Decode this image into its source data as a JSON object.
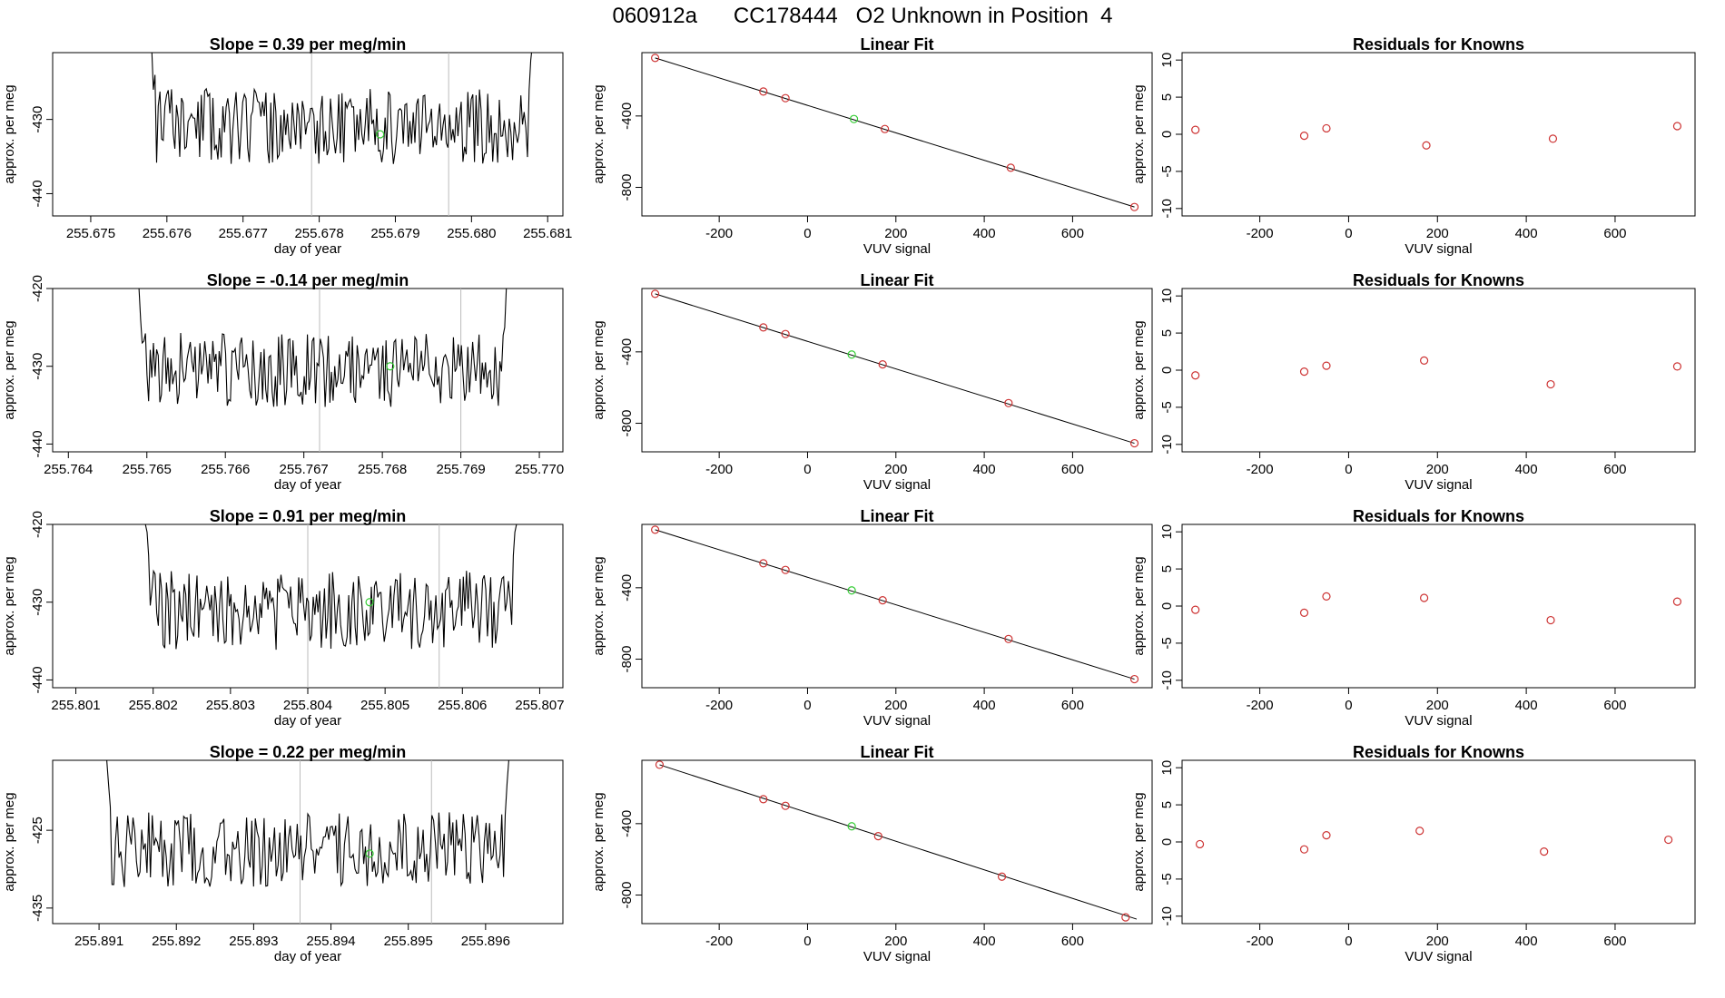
{
  "header": {
    "title": "060912a      CC178444   O2 Unknown in Position  4"
  },
  "chart_data": [
    {
      "type": "line",
      "panel": "time-series",
      "row": 1,
      "title": "Slope =  0.39  per meg/min",
      "xlabel": "day of year",
      "ylabel": "approx. per meg",
      "xlim": [
        255.6745,
        255.6812
      ],
      "ylim": [
        -443,
        -421
      ],
      "xticks": [
        "255.675",
        "255.676",
        "255.677",
        "255.678",
        "255.679",
        "255.680",
        "255.681"
      ],
      "yticks": [
        "-430",
        "-440"
      ],
      "start": 255.6758,
      "end": 255.6808,
      "base": -431,
      "amp": 3.2,
      "seed": 11,
      "edge_left": [
        -420,
        -426,
        -424
      ],
      "edge_right": [
        -426,
        -422,
        -420
      ],
      "vlines": [
        255.6779,
        255.6797
      ],
      "highlight": {
        "x": 255.6788,
        "y": -432
      }
    },
    {
      "type": "scatter",
      "panel": "linear-fit",
      "row": 1,
      "title": "Linear Fit",
      "xlabel": "VUV signal",
      "ylabel": "approx. per meg",
      "xlim": [
        -375,
        780
      ],
      "ylim": [
        -960,
        -45
      ],
      "xticks": [
        "-200",
        "0",
        "200",
        "400",
        "600"
      ],
      "yticks": [
        "-400",
        "-800"
      ],
      "points": [
        [
          -345,
          -75
        ],
        [
          -100,
          -263
        ],
        [
          -50,
          -300
        ],
        [
          175,
          -473
        ],
        [
          460,
          -690
        ],
        [
          740,
          -910
        ]
      ],
      "highlight": {
        "x": 105,
        "y": -417
      },
      "line": [
        [
          -345,
          -75
        ],
        [
          740,
          -910
        ]
      ]
    },
    {
      "type": "scatter",
      "panel": "residuals",
      "row": 1,
      "title": "Residuals for Knowns",
      "xlabel": "VUV signal",
      "ylabel": "approx. per meg",
      "xlim": [
        -375,
        780
      ],
      "ylim": [
        -11,
        11
      ],
      "xticks": [
        "-200",
        "0",
        "200",
        "400",
        "600"
      ],
      "yticks": [
        "10",
        "5",
        "0",
        "-5",
        "-10"
      ],
      "points": [
        [
          -345,
          0.6
        ],
        [
          -100,
          -0.2
        ],
        [
          -50,
          0.8
        ],
        [
          175,
          -1.5
        ],
        [
          460,
          -0.6
        ],
        [
          740,
          1.1
        ]
      ]
    },
    {
      "type": "line",
      "panel": "time-series",
      "row": 2,
      "title": "Slope =  -0.14  per meg/min",
      "xlabel": "day of year",
      "ylabel": "approx. per meg",
      "xlim": [
        255.7638,
        255.7703
      ],
      "ylim": [
        -441,
        -420
      ],
      "xticks": [
        "255.764",
        "255.765",
        "255.766",
        "255.767",
        "255.768",
        "255.769",
        "255.770"
      ],
      "yticks": [
        "-420",
        "-430",
        "-440"
      ],
      "start": 255.7649,
      "end": 255.7696,
      "base": -430.5,
      "amp": 3,
      "seed": 23,
      "edge_left": [
        -420,
        -424,
        -427
      ],
      "edge_right": [
        -425,
        -420,
        -420
      ],
      "vlines": [
        255.7672,
        255.769
      ],
      "highlight": {
        "x": 255.7681,
        "y": -430
      }
    },
    {
      "type": "scatter",
      "panel": "linear-fit",
      "row": 2,
      "title": "Linear Fit",
      "xlabel": "VUV signal",
      "ylabel": "approx. per meg",
      "xlim": [
        -375,
        780
      ],
      "ylim": [
        -960,
        -45
      ],
      "xticks": [
        "-200",
        "0",
        "200",
        "400",
        "600"
      ],
      "yticks": [
        "-400",
        "-800"
      ],
      "points": [
        [
          -345,
          -75
        ],
        [
          -100,
          -263
        ],
        [
          -50,
          -300
        ],
        [
          170,
          -470
        ],
        [
          455,
          -687
        ],
        [
          740,
          -912
        ]
      ],
      "highlight": {
        "x": 100,
        "y": -415
      },
      "line": [
        [
          -345,
          -75
        ],
        [
          740,
          -912
        ]
      ]
    },
    {
      "type": "scatter",
      "panel": "residuals",
      "row": 2,
      "title": "Residuals for Knowns",
      "xlabel": "VUV signal",
      "ylabel": "approx. per meg",
      "xlim": [
        -375,
        780
      ],
      "ylim": [
        -11,
        11
      ],
      "xticks": [
        "-200",
        "0",
        "200",
        "400",
        "600"
      ],
      "yticks": [
        "10",
        "5",
        "0",
        "-5",
        "-10"
      ],
      "points": [
        [
          -345,
          -0.7
        ],
        [
          -100,
          -0.2
        ],
        [
          -50,
          0.6
        ],
        [
          170,
          1.3
        ],
        [
          455,
          -1.9
        ],
        [
          740,
          0.5
        ]
      ]
    },
    {
      "type": "line",
      "panel": "time-series",
      "row": 3,
      "title": "Slope =  0.91  per meg/min",
      "xlabel": "day of year",
      "ylabel": "approx. per meg",
      "xlim": [
        255.8007,
        255.8073
      ],
      "ylim": [
        -441,
        -420
      ],
      "xticks": [
        "255.801",
        "255.802",
        "255.803",
        "255.804",
        "255.805",
        "255.806",
        "255.807"
      ],
      "yticks": [
        "-420",
        "-430",
        "-440"
      ],
      "start": 255.8019,
      "end": 255.8067,
      "base": -431,
      "amp": 3.2,
      "seed": 37,
      "edge_left": [
        -420,
        -421,
        -424
      ],
      "edge_right": [
        -424,
        -421,
        -420
      ],
      "vlines": [
        255.804,
        255.8057
      ],
      "highlight": {
        "x": 255.8048,
        "y": -430
      }
    },
    {
      "type": "scatter",
      "panel": "linear-fit",
      "row": 3,
      "title": "Linear Fit",
      "xlabel": "VUV signal",
      "ylabel": "approx. per meg",
      "xlim": [
        -375,
        780
      ],
      "ylim": [
        -960,
        -45
      ],
      "xticks": [
        "-200",
        "0",
        "200",
        "400",
        "600"
      ],
      "yticks": [
        "-400",
        "-800"
      ],
      "points": [
        [
          -345,
          -75
        ],
        [
          -100,
          -263
        ],
        [
          -50,
          -300
        ],
        [
          170,
          -470
        ],
        [
          455,
          -687
        ],
        [
          740,
          -912
        ]
      ],
      "highlight": {
        "x": 100,
        "y": -415
      },
      "line": [
        [
          -345,
          -75
        ],
        [
          740,
          -912
        ]
      ]
    },
    {
      "type": "scatter",
      "panel": "residuals",
      "row": 3,
      "title": "Residuals for Knowns",
      "xlabel": "VUV signal",
      "ylabel": "approx. per meg",
      "xlim": [
        -375,
        780
      ],
      "ylim": [
        -11,
        11
      ],
      "xticks": [
        "-200",
        "0",
        "200",
        "400",
        "600"
      ],
      "yticks": [
        "10",
        "5",
        "0",
        "-5",
        "-10"
      ],
      "points": [
        [
          -345,
          -0.5
        ],
        [
          -100,
          -0.9
        ],
        [
          -50,
          1.3
        ],
        [
          170,
          1.1
        ],
        [
          455,
          -1.9
        ],
        [
          740,
          0.6
        ]
      ]
    },
    {
      "type": "line",
      "panel": "time-series",
      "row": 4,
      "title": "Slope =  0.22  per meg/min",
      "xlabel": "day of year",
      "ylabel": "approx. per meg",
      "xlim": [
        255.8904,
        255.897
      ],
      "ylim": [
        -437,
        -416
      ],
      "xticks": [
        "255.891",
        "255.892",
        "255.893",
        "255.894",
        "255.895",
        "255.896"
      ],
      "yticks": [
        "-425",
        "-435"
      ],
      "start": 255.8911,
      "end": 255.8963,
      "base": -427.5,
      "amp": 3,
      "seed": 53,
      "edge_left": [
        -416,
        -419,
        -422
      ],
      "edge_right": [
        -423,
        -419,
        -416
      ],
      "vlines": [
        255.8936,
        255.8953
      ],
      "highlight": {
        "x": 255.8945,
        "y": -428
      }
    },
    {
      "type": "scatter",
      "panel": "linear-fit",
      "row": 4,
      "title": "Linear Fit",
      "xlabel": "VUV signal",
      "ylabel": "approx. per meg",
      "xlim": [
        -375,
        780
      ],
      "ylim": [
        -960,
        -45
      ],
      "xticks": [
        "-200",
        "0",
        "200",
        "400",
        "600"
      ],
      "yticks": [
        "-400",
        "-800"
      ],
      "points": [
        [
          -335,
          -70
        ],
        [
          -100,
          -263
        ],
        [
          -50,
          -300
        ],
        [
          160,
          -470
        ],
        [
          440,
          -697
        ],
        [
          720,
          -925
        ]
      ],
      "highlight": {
        "x": 100,
        "y": -415
      },
      "line": [
        [
          -335,
          -70
        ],
        [
          745,
          -935
        ]
      ]
    },
    {
      "type": "scatter",
      "panel": "residuals",
      "row": 4,
      "title": "Residuals for Knowns",
      "xlabel": "VUV signal",
      "ylabel": "approx. per meg",
      "xlim": [
        -375,
        780
      ],
      "ylim": [
        -11,
        11
      ],
      "xticks": [
        "-200",
        "0",
        "200",
        "400",
        "600"
      ],
      "yticks": [
        "10",
        "5",
        "0",
        "-5",
        "-10"
      ],
      "points": [
        [
          -335,
          -0.3
        ],
        [
          -100,
          -1.0
        ],
        [
          -50,
          0.9
        ],
        [
          160,
          1.5
        ],
        [
          440,
          -1.3
        ],
        [
          720,
          0.3
        ]
      ]
    }
  ],
  "colors": {
    "line": "#000000",
    "point": "#cd3333",
    "highlight": "#33cc33",
    "guide": "#bbbbbb"
  }
}
